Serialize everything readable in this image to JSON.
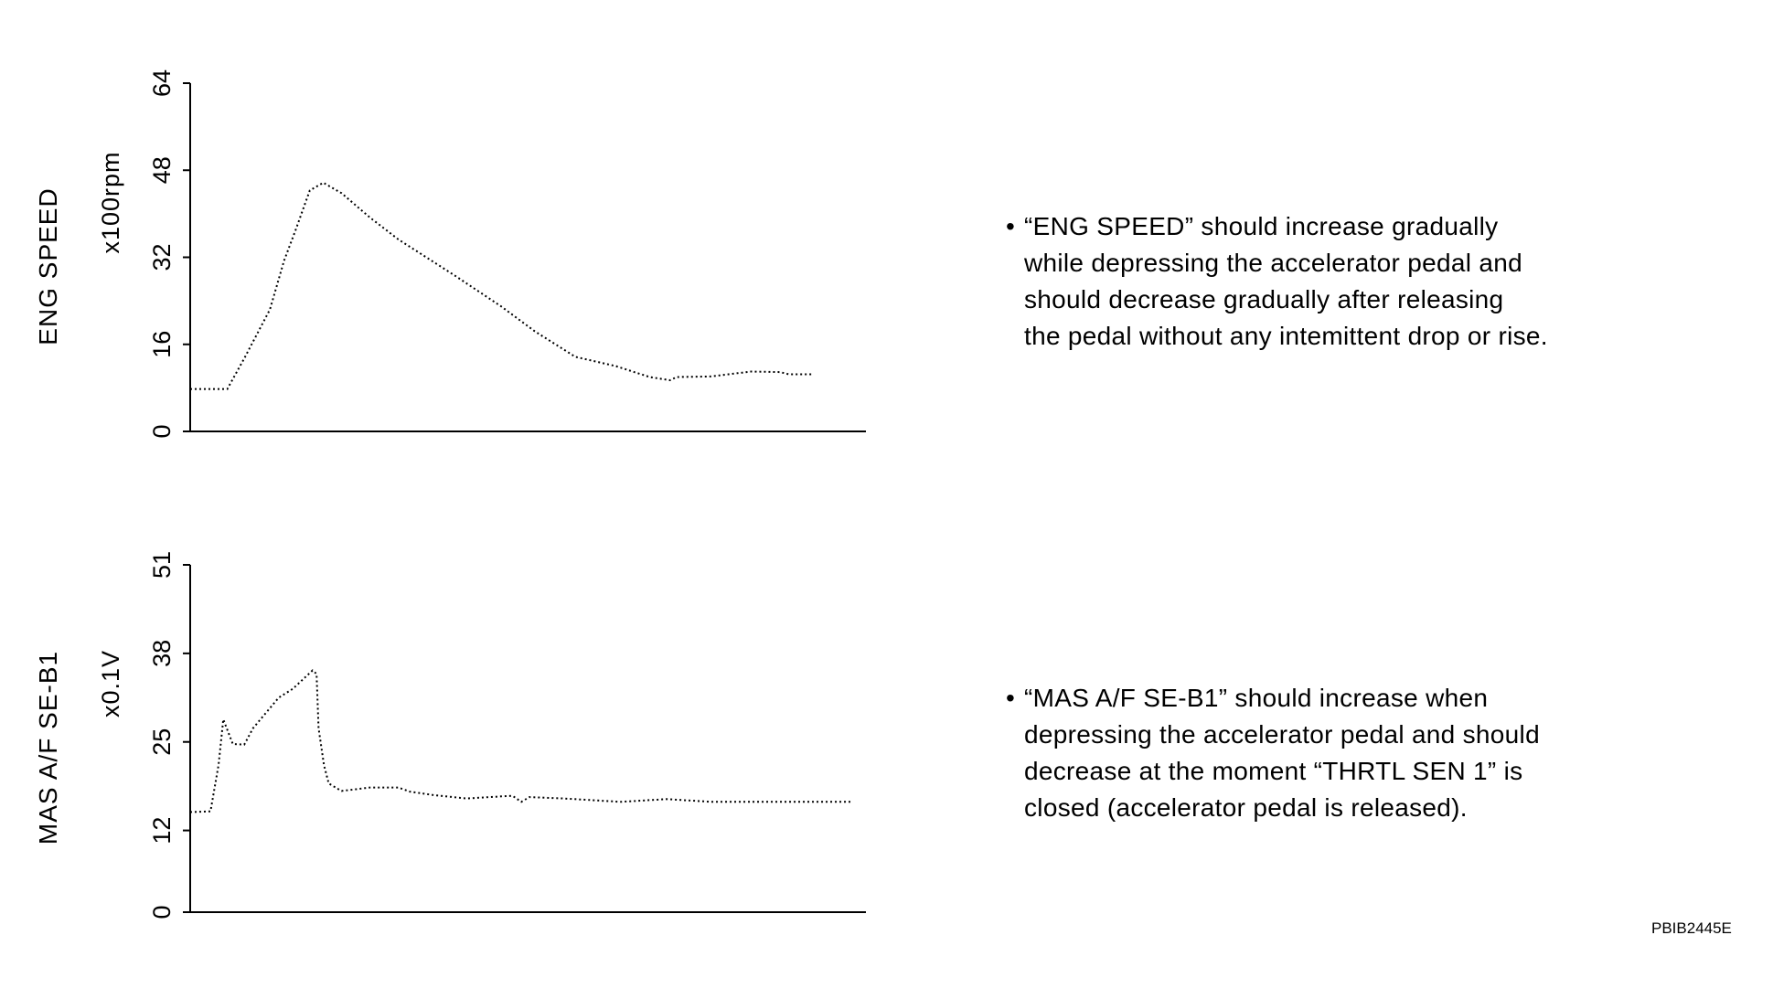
{
  "chart_data": [
    {
      "type": "line",
      "ylabel": "ENG SPEED",
      "unit": "x100rpm",
      "ylim": [
        0,
        64
      ],
      "yticks": [
        0,
        16,
        32,
        48,
        64
      ],
      "xlim": [
        0,
        100
      ],
      "grid": false,
      "line_style": "dotted",
      "series": [
        {
          "x": [
            0,
            5.5,
            8,
            11.8,
            13.9,
            15.6,
            17.7,
            19.7,
            22.4,
            26.6,
            30.8,
            39.2,
            46,
            51,
            57,
            63,
            68,
            71,
            72,
            77,
            83,
            87.3,
            88.6,
            92
          ],
          "y": [
            7.8,
            7.8,
            13.4,
            22.4,
            31.4,
            37,
            44.3,
            45.7,
            43.8,
            39.3,
            35.3,
            28.6,
            23,
            18.4,
            13.7,
            12,
            10,
            9.4,
            10,
            10.1,
            11,
            10.9,
            10.5,
            10.5
          ]
        }
      ]
    },
    {
      "type": "line",
      "ylabel": "MAS A/F SE-B1",
      "unit": "x0.1V",
      "ylim": [
        0,
        51
      ],
      "yticks": [
        0,
        12,
        25,
        38,
        51
      ],
      "xlim": [
        0,
        100
      ],
      "grid": false,
      "line_style": "dotted",
      "series": [
        {
          "x": [
            0,
            3,
            4.2,
            4.9,
            6.3,
            8,
            9.3,
            13.1,
            15.2,
            18.1,
            18.7,
            19,
            19.8,
            20.5,
            22.4,
            26.6,
            30.8,
            32.5,
            35.9,
            40.9,
            47.7,
            49,
            50.2,
            55.3,
            63.7,
            70.5,
            77.2,
            97.9
          ],
          "y": [
            14.7,
            14.8,
            21.6,
            28.3,
            24.7,
            24.6,
            27,
            31.5,
            32.8,
            35.5,
            35,
            27,
            21.6,
            18.9,
            17.8,
            18.3,
            18.3,
            17.7,
            17.2,
            16.7,
            17.1,
            16.2,
            16.9,
            16.7,
            16.2,
            16.6,
            16.2,
            16.2
          ]
        }
      ]
    }
  ],
  "notes": [
    {
      "bullet": "•",
      "text": "“ENG SPEED” should increase gradually\nwhile depressing the accelerator pedal and\nshould decrease gradually after releasing\nthe pedal without any intemittent drop or rise."
    },
    {
      "bullet": "•",
      "text": "“MAS A/F SE-B1” should increase when\ndepressing the accelerator pedal and  should\ndecrease at the moment “THRTL SEN 1” is\nclosed (accelerator pedal is released)."
    }
  ],
  "figure_code": "PBIB2445E"
}
